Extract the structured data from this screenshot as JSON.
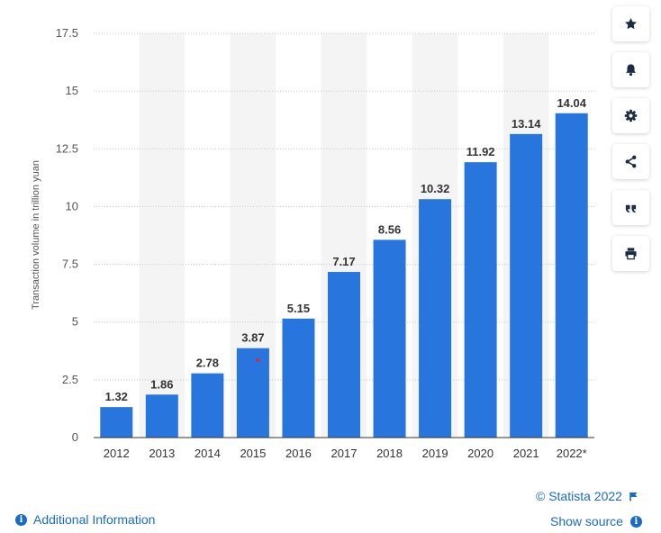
{
  "chart_data": {
    "type": "bar",
    "categories": [
      "2012",
      "2013",
      "2014",
      "2015",
      "2016",
      "2017",
      "2018",
      "2019",
      "2020",
      "2021",
      "2022*"
    ],
    "values": [
      1.32,
      1.86,
      2.78,
      3.87,
      5.15,
      7.17,
      8.56,
      10.32,
      11.92,
      13.14,
      14.04
    ],
    "value_labels": [
      "1.32",
      "1.86",
      "2.78",
      "3.87",
      "5.15",
      "7.17",
      "8.56",
      "10.32",
      "11.92",
      "13.14",
      "14.04"
    ],
    "ylabel": "Transaction volume in trillion yuan",
    "ylim": [
      0,
      17.5
    ],
    "yticks": [
      0,
      2.5,
      5,
      7.5,
      10,
      12.5,
      15,
      17.5
    ],
    "ytick_labels": [
      "0",
      "2.5",
      "5",
      "7.5",
      "10",
      "12.5",
      "15",
      "17.5"
    ],
    "grid": true,
    "bar_color": "#2876dd"
  },
  "footer": {
    "credit": "© Statista 2022",
    "additional_info": "Additional Information",
    "show_source": "Show source"
  },
  "toolbar": {
    "icons": [
      "star-icon",
      "bell-icon",
      "gear-icon",
      "share-icon",
      "quote-icon",
      "print-icon"
    ]
  },
  "colors": {
    "accent": "#1a6bc9",
    "bar": "#2876dd",
    "band": "#f4f4f4"
  }
}
